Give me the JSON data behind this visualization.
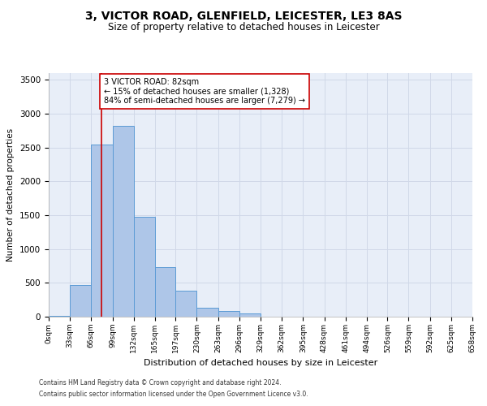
{
  "title1": "3, VICTOR ROAD, GLENFIELD, LEICESTER, LE3 8AS",
  "title2": "Size of property relative to detached houses in Leicester",
  "xlabel": "Distribution of detached houses by size in Leicester",
  "ylabel": "Number of detached properties",
  "bin_edges": [
    0,
    33,
    66,
    99,
    132,
    165,
    197,
    230,
    263,
    296,
    329,
    362,
    395,
    428,
    461,
    494,
    526,
    559,
    592,
    625,
    658
  ],
  "bin_labels": [
    "0sqm",
    "33sqm",
    "66sqm",
    "99sqm",
    "132sqm",
    "165sqm",
    "197sqm",
    "230sqm",
    "263sqm",
    "296sqm",
    "329sqm",
    "362sqm",
    "395sqm",
    "428sqm",
    "461sqm",
    "494sqm",
    "526sqm",
    "559sqm",
    "592sqm",
    "625sqm",
    "658sqm"
  ],
  "bar_heights": [
    10,
    470,
    2550,
    2820,
    1480,
    730,
    380,
    130,
    80,
    50,
    0,
    0,
    0,
    0,
    0,
    0,
    0,
    0,
    0,
    0
  ],
  "bar_color": "#aec6e8",
  "bar_edge_color": "#5b9bd5",
  "property_value": 82,
  "vline_color": "#cc0000",
  "annotation_text": "3 VICTOR ROAD: 82sqm\n← 15% of detached houses are smaller (1,328)\n84% of semi-detached houses are larger (7,279) →",
  "annotation_box_color": "#ffffff",
  "annotation_box_edge_color": "#cc0000",
  "ylim": [
    0,
    3600
  ],
  "yticks": [
    0,
    500,
    1000,
    1500,
    2000,
    2500,
    3000,
    3500
  ],
  "grid_color": "#d0d8e8",
  "bg_color": "#e8eef8",
  "footer1": "Contains HM Land Registry data © Crown copyright and database right 2024.",
  "footer2": "Contains public sector information licensed under the Open Government Licence v3.0.",
  "title1_fontsize": 10,
  "title2_fontsize": 8.5,
  "annot_fontsize": 7.0,
  "ylabel_fontsize": 7.5,
  "xlabel_fontsize": 8.0,
  "ytick_fontsize": 7.5,
  "xtick_fontsize": 6.5,
  "footer_fontsize": 5.5
}
